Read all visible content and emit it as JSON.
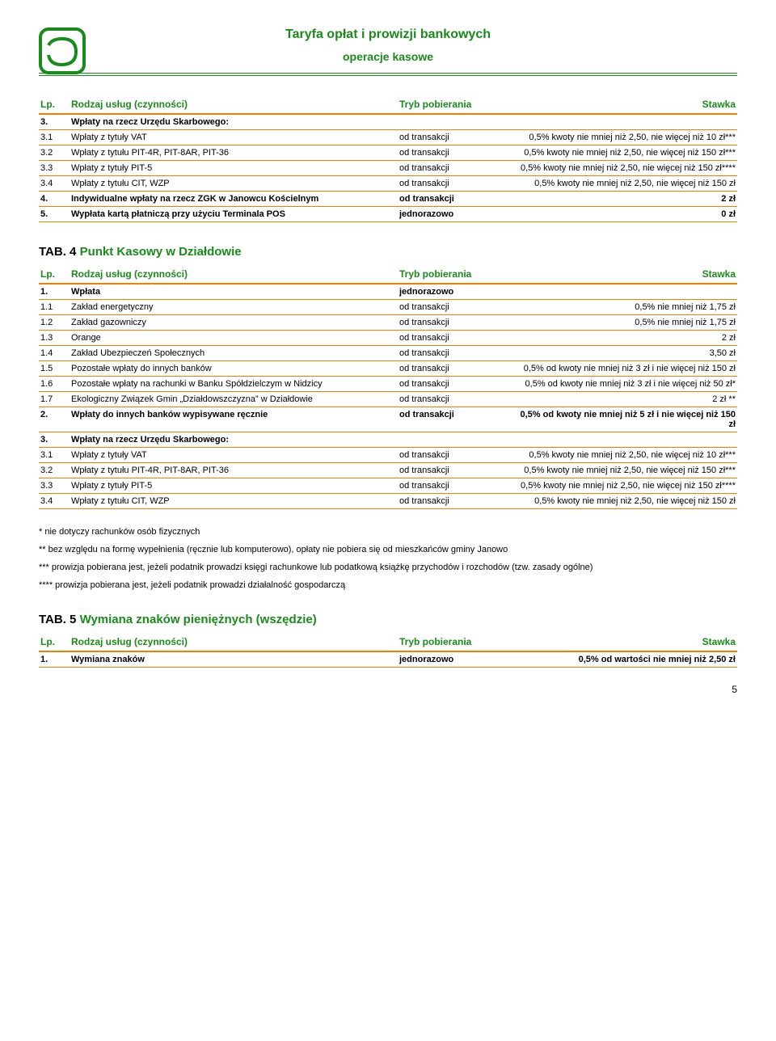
{
  "header": {
    "title_main": "Taryfa opłat i prowizji bankowych",
    "title_sub": "operacje kasowe",
    "logo_stroke": "#1a8a1a"
  },
  "columns": {
    "lp": "Lp.",
    "rodzaj": "Rodzaj usług (czynności)",
    "tryb": "Tryb pobierania",
    "stawka": "Stawka"
  },
  "table1": [
    {
      "lp": "3.",
      "rodzaj": "Wpłaty na rzecz Urzędu Skarbowego:",
      "tryb": "",
      "stawka": "",
      "bold": true
    },
    {
      "lp": "3.1",
      "rodzaj": "Wpłaty z tytuły VAT",
      "tryb": "od transakcji",
      "stawka": "0,5% kwoty nie mniej niż 2,50, nie więcej niż 10 zł***"
    },
    {
      "lp": "3.2",
      "rodzaj": "Wpłaty z tytułu PIT-4R, PIT-8AR, PIT-36",
      "tryb": "od transakcji",
      "stawka": "0,5% kwoty nie mniej niż 2,50, nie więcej niż 150 zł***"
    },
    {
      "lp": "3.3",
      "rodzaj": "Wpłaty z tytuły PIT-5",
      "tryb": "od transakcji",
      "stawka": "0,5% kwoty nie mniej niż 2,50, nie więcej niż 150 zł****"
    },
    {
      "lp": "3.4",
      "rodzaj": "Wpłaty z tytułu CIT, WZP",
      "tryb": "od transakcji",
      "stawka": "0,5% kwoty nie mniej niż 2,50, nie więcej niż 150 zł"
    },
    {
      "lp": "4.",
      "rodzaj": "Indywidualne wpłaty na rzecz ZGK w Janowcu Kościelnym",
      "tryb": "od transakcji",
      "stawka": "2 zł",
      "bold": true
    },
    {
      "lp": "5.",
      "rodzaj": "Wypłata kartą płatniczą przy użyciu Terminala POS",
      "tryb": "jednorazowo",
      "stawka": "0 zł",
      "bold": true
    }
  ],
  "section4": {
    "prefix": "TAB. 4 ",
    "title": "Punkt Kasowy w Działdowie"
  },
  "table2": [
    {
      "lp": "1.",
      "rodzaj": "Wpłata",
      "tryb": "jednorazowo",
      "stawka": "",
      "bold": true
    },
    {
      "lp": "1.1",
      "rodzaj": "Zakład energetyczny",
      "tryb": "od transakcji",
      "stawka": "0,5% nie mniej niż 1,75 zł"
    },
    {
      "lp": "1.2",
      "rodzaj": "Zakład gazowniczy",
      "tryb": "od transakcji",
      "stawka": "0,5% nie mniej niż 1,75 zł"
    },
    {
      "lp": "1.3",
      "rodzaj": "Orange",
      "tryb": "od transakcji",
      "stawka": "2 zł"
    },
    {
      "lp": "1.4",
      "rodzaj": "Zakład Ubezpieczeń Społecznych",
      "tryb": "od transakcji",
      "stawka": "3,50 zł"
    },
    {
      "lp": "1.5",
      "rodzaj": "Pozostałe wpłaty do innych banków",
      "tryb": "od transakcji",
      "stawka": "0,5% od kwoty nie mniej niż 3 zł i nie więcej niż 150 zł"
    },
    {
      "lp": "1.6",
      "rodzaj": "Pozostałe wpłaty na rachunki w Banku Spółdzielczym w Nidzicy",
      "tryb": "od transakcji",
      "stawka": "0,5% od kwoty nie mniej niż 3 zł i nie więcej niż 50 zł*"
    },
    {
      "lp": "1.7",
      "rodzaj": "Ekologiczny Związek Gmin „Działdowszczyzna” w Działdowie",
      "tryb": "od transakcji",
      "stawka": "2 zł **"
    },
    {
      "lp": "2.",
      "rodzaj": "Wpłaty do innych banków wypisywane ręcznie",
      "tryb": "od transakcji",
      "stawka": "0,5% od kwoty nie mniej niż 5 zł i nie więcej niż 150 zł",
      "bold": true
    },
    {
      "lp": "3.",
      "rodzaj": "Wpłaty na rzecz Urzędu Skarbowego:",
      "tryb": "",
      "stawka": "",
      "bold": true
    },
    {
      "lp": "3.1",
      "rodzaj": "Wpłaty z tytuły VAT",
      "tryb": "od transakcji",
      "stawka": "0,5% kwoty nie mniej niż 2,50, nie więcej niż 10 zł***"
    },
    {
      "lp": "3.2",
      "rodzaj": "Wpłaty z tytułu PIT-4R, PIT-8AR, PIT-36",
      "tryb": "od transakcji",
      "stawka": "0,5% kwoty nie mniej niż 2,50, nie więcej niż 150 zł***"
    },
    {
      "lp": "3.3",
      "rodzaj": "Wpłaty z tytuły PIT-5",
      "tryb": "od transakcji",
      "stawka": "0,5% kwoty nie mniej niż 2,50, nie więcej niż 150 zł****"
    },
    {
      "lp": "3.4",
      "rodzaj": "Wpłaty z tytułu CIT, WZP",
      "tryb": "od transakcji",
      "stawka": "0,5% kwoty nie mniej niż 2,50, nie więcej niż 150 zł"
    }
  ],
  "footnotes": [
    "* nie dotyczy rachunków osób fizycznych",
    "** bez względu na formę wypełnienia (ręcznie lub komputerowo), opłaty nie pobiera się od mieszkańców gminy Janowo",
    "*** prowizja pobierana jest, jeżeli podatnik prowadzi księgi rachunkowe lub podatkową książkę przychodów i rozchodów (tzw. zasady ogólne)",
    "**** prowizja pobierana jest, jeżeli podatnik prowadzi działalność gospodarczą"
  ],
  "section5": {
    "prefix": "TAB. 5 ",
    "title": "Wymiana znaków pieniężnych (wszędzie)"
  },
  "table3": [
    {
      "lp": "1.",
      "rodzaj": "Wymiana znaków",
      "tryb": "jednorazowo",
      "stawka": "0,5% od wartości nie mniej niż 2,50 zł",
      "bold": true
    }
  ],
  "page_num": "5"
}
